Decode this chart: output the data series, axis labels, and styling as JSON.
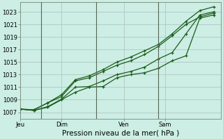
{
  "title": "Pression niveau de la mer( hPa )",
  "bg_color": "#cceee4",
  "grid_color": "#aabfba",
  "line_color": "#1a5c1a",
  "marker_color": "#1a5c1a",
  "yticks": [
    1007,
    1009,
    1011,
    1013,
    1015,
    1017,
    1019,
    1021,
    1023
  ],
  "ylim": [
    1006.0,
    1024.5
  ],
  "day_labels": [
    "Jeu",
    "Dim",
    "Ven",
    "Sam"
  ],
  "day_positions": [
    0.0,
    3.0,
    7.5,
    10.5
  ],
  "vline_positions": [
    1.5,
    5.5,
    10.0
  ],
  "xlim": [
    0,
    14.5
  ],
  "series1": [
    1007.5,
    1007.3,
    1007.8,
    1009.0,
    1010.2,
    1011.0,
    1011.1,
    1012.5,
    1013.0,
    1013.3,
    1014.0,
    1015.2,
    1016.0,
    1022.0,
    1022.5
  ],
  "series2": [
    1007.5,
    1007.3,
    1007.9,
    1009.1,
    1011.0,
    1011.1,
    1012.0,
    1013.0,
    1013.5,
    1014.2,
    1015.5,
    1016.5,
    1019.5,
    1022.5,
    1023.0
  ],
  "series3": [
    1007.5,
    1007.4,
    1008.5,
    1009.5,
    1012.0,
    1012.5,
    1013.5,
    1014.5,
    1015.2,
    1016.2,
    1017.5,
    1019.2,
    1021.0,
    1022.2,
    1022.8
  ],
  "series4": [
    1007.5,
    1007.4,
    1008.5,
    1009.8,
    1012.2,
    1012.8,
    1013.8,
    1015.0,
    1015.8,
    1016.8,
    1017.8,
    1019.5,
    1021.5,
    1023.2,
    1023.8
  ],
  "vline_color": "#556655",
  "xlabel_fontsize": 7.5,
  "tick_fontsize": 6.0,
  "linewidth": 0.9,
  "markersize": 3.5
}
